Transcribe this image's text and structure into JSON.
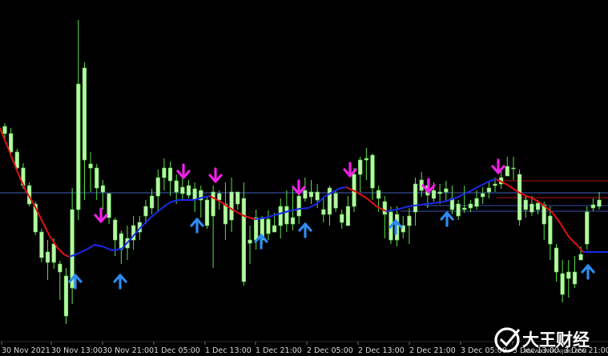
{
  "chart_data": {
    "type": "candlestick",
    "x_ticks": [
      "30 Nov 2021",
      "30 Nov 13:00",
      "30 Nov 21:00",
      "1 Dec 05:00",
      "1 Dec 13:00",
      "1 Dec 21:00",
      "2 Dec 05:00",
      "2 Dec 13:00",
      "2 Dec 21:00",
      "3 Dec 05:00",
      "3 Dec 13:00",
      "3 Dec 21:00"
    ],
    "grid": false,
    "colors": {
      "background": "#000000",
      "candle": "#b8f5a8",
      "wick": "#5fe04a",
      "trend_down": "#e01010",
      "trend_up": "#1a2ae8",
      "buy_arrow": "#2f8cf0",
      "sell_arrow": "#f020e6",
      "level_line_blue": "#5070e0",
      "level_line_red": "#d01818"
    },
    "candles": [
      [
        167,
        158,
        173,
        154
      ],
      [
        190,
        167,
        192,
        160
      ],
      [
        210,
        190,
        214,
        186
      ],
      [
        232,
        210,
        236,
        204
      ],
      [
        255,
        232,
        258,
        228
      ],
      [
        290,
        255,
        294,
        252
      ],
      [
        322,
        290,
        328,
        286
      ],
      [
        328,
        315,
        350,
        300
      ],
      [
        305,
        328,
        336,
        298
      ],
      [
        340,
        330,
        375,
        326
      ],
      [
        395,
        345,
        405,
        335
      ],
      [
        360,
        262,
        380,
        235
      ],
      [
        262,
        105,
        275,
        25
      ],
      [
        200,
        85,
        250,
        78
      ],
      [
        210,
        205,
        240,
        190
      ],
      [
        235,
        210,
        250,
        205
      ],
      [
        240,
        232,
        262,
        225
      ],
      [
        272,
        242,
        280,
        250
      ],
      [
        300,
        275,
        320,
        272
      ],
      [
        312,
        292,
        330,
        288
      ],
      [
        298,
        310,
        325,
        282
      ],
      [
        300,
        282,
        312,
        270
      ],
      [
        278,
        290,
        300,
        270
      ],
      [
        258,
        270,
        280,
        250
      ],
      [
        245,
        260,
        268,
        236
      ],
      [
        222,
        245,
        265,
        212
      ],
      [
        210,
        222,
        238,
        198
      ],
      [
        226,
        210,
        245,
        202
      ],
      [
        240,
        226,
        255,
        218
      ],
      [
        242,
        234,
        250,
        220
      ],
      [
        232,
        244,
        248,
        225
      ],
      [
        250,
        236,
        265,
        228
      ],
      [
        238,
        250,
        272,
        232
      ],
      [
        282,
        250,
        286,
        245
      ],
      [
        240,
        270,
        335,
        232
      ],
      [
        250,
        242,
        262,
        238
      ],
      [
        280,
        255,
        300,
        228
      ],
      [
        240,
        275,
        290,
        222
      ],
      [
        255,
        240,
        262,
        242
      ],
      [
        352,
        248,
        357,
        228
      ],
      [
        304,
        300,
        330,
        282
      ],
      [
        272,
        300,
        312,
        262
      ],
      [
        300,
        272,
        305,
        270
      ],
      [
        292,
        274,
        300,
        263
      ],
      [
        282,
        290,
        290,
        266
      ],
      [
        258,
        282,
        298,
        248
      ],
      [
        280,
        258,
        290,
        238
      ],
      [
        272,
        280,
        288,
        232
      ],
      [
        245,
        270,
        280,
        228
      ],
      [
        238,
        248,
        252,
        222
      ],
      [
        246,
        240,
        255,
        225
      ],
      [
        240,
        250,
        260,
        230
      ],
      [
        268,
        262,
        278,
        248
      ],
      [
        235,
        268,
        282,
        232
      ],
      [
        260,
        242,
        265,
        238
      ],
      [
        278,
        268,
        286,
        262
      ],
      [
        258,
        282,
        270,
        245
      ],
      [
        218,
        258,
        265,
        210
      ],
      [
        200,
        218,
        240,
        196
      ],
      [
        198,
        200,
        225,
        185
      ],
      [
        235,
        194,
        250,
        192
      ],
      [
        248,
        238,
        265,
        232
      ],
      [
        268,
        252,
        298,
        245
      ],
      [
        300,
        265,
        305,
        258
      ],
      [
        268,
        300,
        308,
        258
      ],
      [
        290,
        282,
        298,
        270
      ],
      [
        282,
        270,
        305,
        260
      ],
      [
        230,
        265,
        282,
        222
      ],
      [
        238,
        225,
        246,
        215
      ],
      [
        244,
        232,
        260,
        225
      ],
      [
        248,
        238,
        252,
        228
      ],
      [
        240,
        242,
        255,
        230
      ],
      [
        236,
        240,
        252,
        226
      ],
      [
        262,
        248,
        268,
        232
      ],
      [
        270,
        255,
        275,
        250
      ],
      [
        260,
        262,
        266,
        232
      ],
      [
        255,
        260,
        265,
        250
      ],
      [
        248,
        258,
        262,
        238
      ],
      [
        242,
        246,
        255,
        234
      ],
      [
        235,
        240,
        248,
        228
      ],
      [
        230,
        232,
        240,
        222
      ],
      [
        222,
        230,
        236,
        212
      ],
      [
        208,
        220,
        215,
        196
      ],
      [
        210,
        210,
        225,
        196
      ],
      [
        275,
        218,
        282,
        212
      ],
      [
        250,
        262,
        272,
        245
      ],
      [
        265,
        255,
        270,
        245
      ],
      [
        262,
        254,
        268,
        250
      ],
      [
        280,
        256,
        300,
        252
      ],
      [
        305,
        270,
        325,
        258
      ],
      [
        340,
        310,
        352,
        305
      ],
      [
        368,
        342,
        378,
        325
      ],
      [
        340,
        348,
        372,
        325
      ],
      [
        340,
        355,
        360,
        320
      ],
      [
        318,
        325,
        325,
        308
      ],
      [
        265,
        305,
        312,
        258
      ],
      [
        260,
        256,
        264,
        248
      ],
      [
        250,
        258,
        262,
        240
      ]
    ],
    "trend_line_down": [
      [
        0,
        160
      ],
      [
        8,
        180
      ],
      [
        16,
        200
      ],
      [
        24,
        220
      ],
      [
        32,
        238
      ],
      [
        42,
        255
      ],
      [
        52,
        275
      ],
      [
        62,
        295
      ],
      [
        72,
        310
      ],
      [
        80,
        318
      ],
      [
        86,
        321
      ]
    ],
    "trend_line_up": [
      [
        86,
        321
      ],
      [
        95,
        318
      ],
      [
        108,
        312
      ],
      [
        118,
        306
      ],
      [
        128,
        308
      ],
      [
        140,
        313
      ],
      [
        152,
        311
      ],
      [
        162,
        300
      ],
      [
        175,
        285
      ],
      [
        188,
        272
      ],
      [
        200,
        262
      ],
      [
        212,
        253
      ],
      [
        222,
        250
      ],
      [
        232,
        250
      ],
      [
        242,
        250
      ],
      [
        252,
        247
      ],
      [
        262,
        245
      ]
    ],
    "trend_line_down_2": [
      [
        262,
        245
      ],
      [
        275,
        252
      ],
      [
        290,
        262
      ],
      [
        305,
        270
      ],
      [
        318,
        274
      ]
    ],
    "trend_line_up_2": [
      [
        318,
        274
      ],
      [
        332,
        272
      ],
      [
        346,
        268
      ],
      [
        360,
        264
      ],
      [
        374,
        261
      ],
      [
        385,
        260
      ],
      [
        395,
        255
      ],
      [
        405,
        246
      ],
      [
        415,
        240
      ],
      [
        425,
        235
      ],
      [
        432,
        234
      ]
    ],
    "trend_line_down_3": [
      [
        432,
        234
      ],
      [
        445,
        240
      ],
      [
        458,
        248
      ],
      [
        470,
        258
      ],
      [
        482,
        264
      ]
    ],
    "trend_line_up_3": [
      [
        482,
        264
      ],
      [
        495,
        262
      ],
      [
        510,
        258
      ],
      [
        525,
        256
      ],
      [
        540,
        254
      ],
      [
        555,
        252
      ],
      [
        570,
        247
      ],
      [
        585,
        240
      ],
      [
        600,
        232
      ],
      [
        612,
        226
      ],
      [
        620,
        224
      ]
    ],
    "trend_line_down_4": [
      [
        620,
        224
      ],
      [
        635,
        232
      ],
      [
        650,
        242
      ],
      [
        665,
        248
      ],
      [
        678,
        256
      ],
      [
        690,
        266
      ],
      [
        700,
        280
      ],
      [
        710,
        296
      ],
      [
        720,
        306
      ],
      [
        728,
        315
      ]
    ],
    "trend_line_up_4": [
      [
        728,
        315
      ],
      [
        740,
        315
      ],
      [
        759,
        315
      ]
    ],
    "buy_arrows": [
      [
        94,
        352
      ],
      [
        150,
        352
      ],
      [
        246,
        282
      ],
      [
        326,
        302
      ],
      [
        381,
        288
      ],
      [
        494,
        284
      ],
      [
        558,
        274
      ],
      [
        734,
        340
      ]
    ],
    "sell_arrows": [
      [
        126,
        269
      ],
      [
        229,
        214
      ],
      [
        269,
        219
      ],
      [
        373,
        234
      ],
      [
        437,
        212
      ],
      [
        535,
        232
      ],
      [
        622,
        208
      ]
    ],
    "level_lines": [
      {
        "y": 241,
        "x0": 0,
        "x1": 759,
        "color": "#5070e0"
      },
      {
        "y": 226,
        "x0": 620,
        "x1": 759,
        "color": "#d01818"
      },
      {
        "y": 247,
        "x0": 620,
        "x1": 759,
        "color": "#d01818"
      },
      {
        "y": 257,
        "x0": 530,
        "x1": 759,
        "color": "#4060d0"
      },
      {
        "y": 264,
        "x0": 500,
        "x1": 759,
        "color": "#4060d0"
      }
    ]
  },
  "watermark": {
    "brand": "大王财经",
    "url": "WWW.KINGCAIJING.COM"
  }
}
